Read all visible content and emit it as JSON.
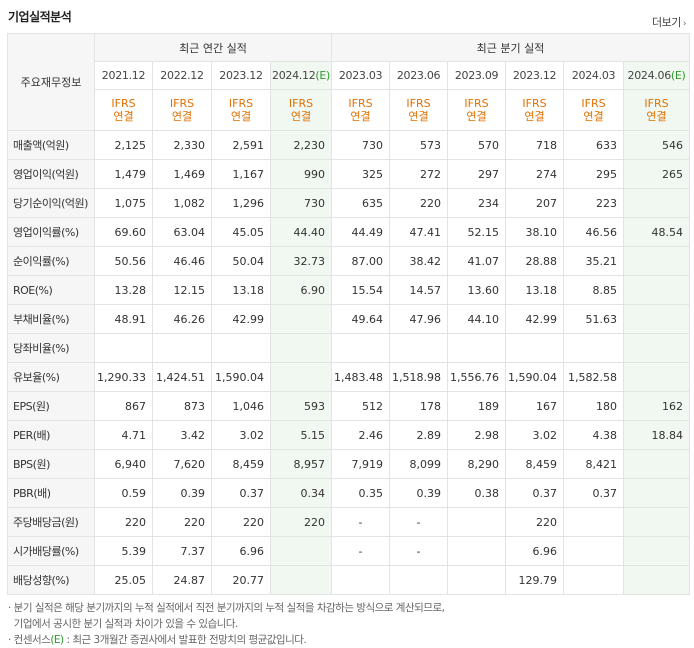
{
  "header": {
    "title": "기업실적분석",
    "more_label": "더보기",
    "more_arrow": "›"
  },
  "table": {
    "corner_label": "주요재무정보",
    "annual_group": "최근 연간 실적",
    "quarter_group": "최근 분기 실적",
    "periods": [
      {
        "label": "2021.12",
        "est": false
      },
      {
        "label": "2022.12",
        "est": false
      },
      {
        "label": "2023.12",
        "est": false
      },
      {
        "label": "2024.12",
        "est": true,
        "est_mark": "(E)"
      },
      {
        "label": "2023.03",
        "est": false
      },
      {
        "label": "2023.06",
        "est": false
      },
      {
        "label": "2023.09",
        "est": false
      },
      {
        "label": "2023.12",
        "est": false
      },
      {
        "label": "2024.03",
        "est": false
      },
      {
        "label": "2024.06",
        "est": true,
        "est_mark": "(E)"
      }
    ],
    "ifrs_top": "IFRS",
    "ifrs_bottom": "연결",
    "rows": [
      {
        "label": "매출액(억원)",
        "values": [
          "2,125",
          "2,330",
          "2,591",
          "2,230",
          "730",
          "573",
          "570",
          "718",
          "633",
          "546"
        ]
      },
      {
        "label": "영업이익(억원)",
        "values": [
          "1,479",
          "1,469",
          "1,167",
          "990",
          "325",
          "272",
          "297",
          "274",
          "295",
          "265"
        ]
      },
      {
        "label": "당기순이익(억원)",
        "values": [
          "1,075",
          "1,082",
          "1,296",
          "730",
          "635",
          "220",
          "234",
          "207",
          "223",
          ""
        ]
      },
      {
        "label": "영업이익률(%)",
        "values": [
          "69.60",
          "63.04",
          "45.05",
          "44.40",
          "44.49",
          "47.41",
          "52.15",
          "38.10",
          "46.56",
          "48.54"
        ]
      },
      {
        "label": "순이익률(%)",
        "values": [
          "50.56",
          "46.46",
          "50.04",
          "32.73",
          "87.00",
          "38.42",
          "41.07",
          "28.88",
          "35.21",
          ""
        ]
      },
      {
        "label": "ROE(%)",
        "values": [
          "13.28",
          "12.15",
          "13.18",
          "6.90",
          "15.54",
          "14.57",
          "13.60",
          "13.18",
          "8.85",
          ""
        ]
      },
      {
        "label": "부채비율(%)",
        "values": [
          "48.91",
          "46.26",
          "42.99",
          "",
          "49.64",
          "47.96",
          "44.10",
          "42.99",
          "51.63",
          ""
        ]
      },
      {
        "label": "당좌비율(%)",
        "values": [
          "",
          "",
          "",
          "",
          "",
          "",
          "",
          "",
          "",
          ""
        ]
      },
      {
        "label": "유보율(%)",
        "values": [
          "1,290.33",
          "1,424.51",
          "1,590.04",
          "",
          "1,483.48",
          "1,518.98",
          "1,556.76",
          "1,590.04",
          "1,582.58",
          ""
        ]
      },
      {
        "label": "EPS(원)",
        "values": [
          "867",
          "873",
          "1,046",
          "593",
          "512",
          "178",
          "189",
          "167",
          "180",
          "162"
        ]
      },
      {
        "label": "PER(배)",
        "values": [
          "4.71",
          "3.42",
          "3.02",
          "5.15",
          "2.46",
          "2.89",
          "2.98",
          "3.02",
          "4.38",
          "18.84"
        ]
      },
      {
        "label": "BPS(원)",
        "values": [
          "6,940",
          "7,620",
          "8,459",
          "8,957",
          "7,919",
          "8,099",
          "8,290",
          "8,459",
          "8,421",
          ""
        ]
      },
      {
        "label": "PBR(배)",
        "values": [
          "0.59",
          "0.39",
          "0.37",
          "0.34",
          "0.35",
          "0.39",
          "0.38",
          "0.37",
          "0.37",
          ""
        ]
      },
      {
        "label": "주당배당금(원)",
        "values": [
          "220",
          "220",
          "220",
          "220",
          "-",
          "-",
          "",
          "220",
          "",
          ""
        ]
      },
      {
        "label": "시가배당률(%)",
        "values": [
          "5.39",
          "7.37",
          "6.96",
          "",
          "-",
          "-",
          "",
          "6.96",
          "",
          ""
        ]
      },
      {
        "label": "배당성향(%)",
        "values": [
          "25.05",
          "24.87",
          "20.77",
          "",
          "",
          "",
          "",
          "129.79",
          "",
          ""
        ]
      }
    ]
  },
  "notes": {
    "line1": "· 분기 실적은 해당 분기까지의 누적 실적에서 직전 분기까지의 누적 실적을 차감하는 방식으로 계산되므로,",
    "line2": "  기업에서 공시한 분기 실적과 차이가 있을 수 있습니다.",
    "line3_prefix": "· 컨센서스",
    "line3_mark": "(E)",
    "line3_suffix": " : 최근 3개월간 증권사에서 발표한 전망치의 평균값입니다."
  },
  "colors": {
    "ifrs": "#e07000",
    "estimate_bg": "#f1f8f1",
    "estimate_mark": "#2e9a2e"
  }
}
